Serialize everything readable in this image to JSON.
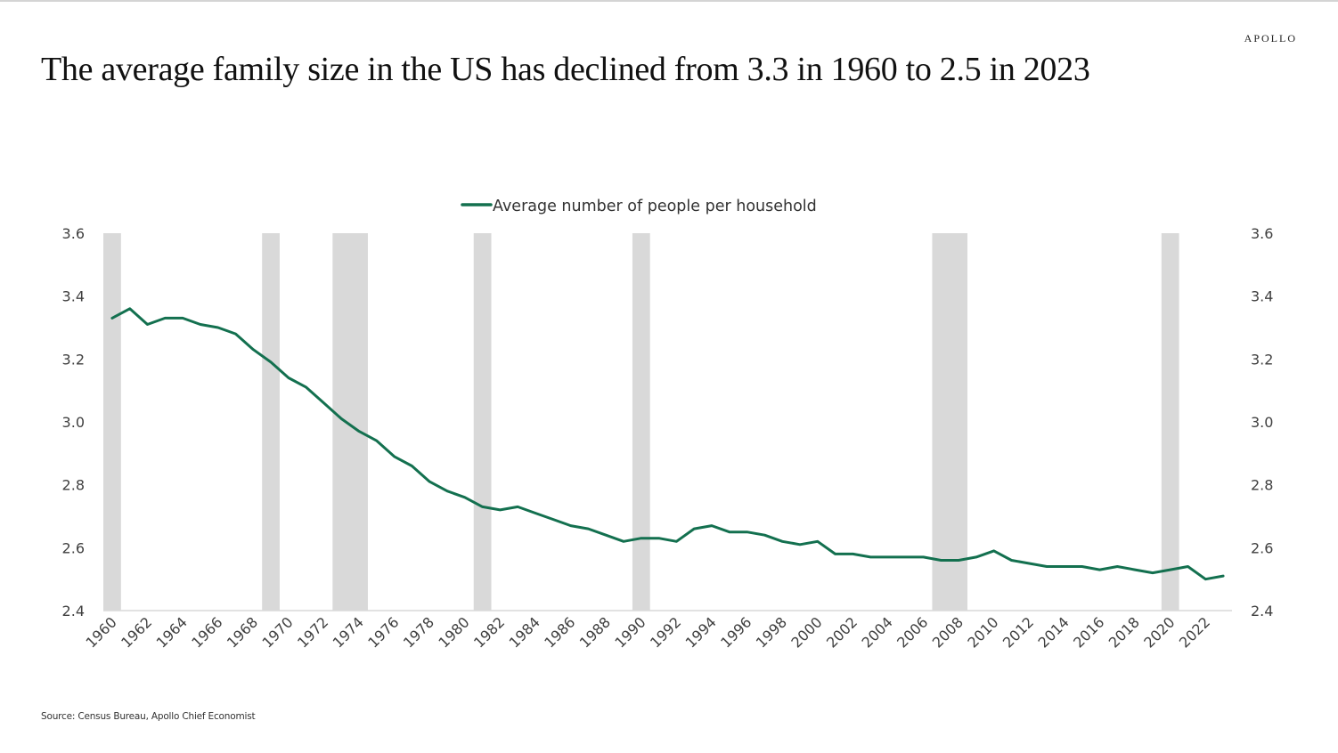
{
  "header": {
    "brand": "APOLLO",
    "title": "The average family size in the US has declined from 3.3 in 1960 to 2.5 in 2023"
  },
  "footer": {
    "source": "Source: Census Bureau, Apollo Chief Economist"
  },
  "colors": {
    "line": "#13704F",
    "recession": "#D9D9D9",
    "axis": "#D9D9D9"
  },
  "chart_data": {
    "type": "line",
    "title": "The average family size in the US has declined from 3.3 in 1960 to 2.5 in 2023",
    "xlabel": "",
    "ylabel": "",
    "ylim": [
      2.4,
      3.6
    ],
    "y_ticks": [
      "2.4",
      "2.6",
      "2.8",
      "3.0",
      "3.2",
      "3.4",
      "3.6"
    ],
    "y_tick_values": [
      2.4,
      2.6,
      2.8,
      3.0,
      3.2,
      3.4,
      3.6
    ],
    "y2_ticks": [
      "2.4",
      "2.6",
      "2.8",
      "3.0",
      "3.2",
      "3.4",
      "3.6"
    ],
    "x_ticks": [
      "1960",
      "1962",
      "1964",
      "1966",
      "1968",
      "1970",
      "1972",
      "1974",
      "1976",
      "1978",
      "1980",
      "1982",
      "1984",
      "1986",
      "1988",
      "1990",
      "1992",
      "1994",
      "1996",
      "1998",
      "2000",
      "2002",
      "2004",
      "2006",
      "2008",
      "2010",
      "2012",
      "2014",
      "2016",
      "2018",
      "2020",
      "2022"
    ],
    "grid": false,
    "legend": {
      "position": "top-center",
      "entries": [
        "Average number of people per household"
      ]
    },
    "recessions": [
      {
        "start": 1960.0,
        "end": 1961.0
      },
      {
        "start": 1969.0,
        "end": 1970.0
      },
      {
        "start": 1973.0,
        "end": 1975.0
      },
      {
        "start": 1981.0,
        "end": 1982.0
      },
      {
        "start": 1990.0,
        "end": 1991.0
      },
      {
        "start": 2007.0,
        "end": 2009.0
      },
      {
        "start": 2020.0,
        "end": 2021.0
      }
    ],
    "x": [
      1960,
      1961,
      1962,
      1963,
      1964,
      1965,
      1966,
      1967,
      1968,
      1969,
      1970,
      1971,
      1972,
      1973,
      1974,
      1975,
      1976,
      1977,
      1978,
      1979,
      1980,
      1981,
      1982,
      1983,
      1984,
      1985,
      1986,
      1987,
      1988,
      1989,
      1990,
      1991,
      1992,
      1993,
      1994,
      1995,
      1996,
      1997,
      1998,
      1999,
      2000,
      2001,
      2002,
      2003,
      2004,
      2005,
      2006,
      2007,
      2008,
      2009,
      2010,
      2011,
      2012,
      2013,
      2014,
      2015,
      2016,
      2017,
      2018,
      2019,
      2020,
      2021,
      2022,
      2023
    ],
    "series": [
      {
        "name": "Average number of people per household",
        "values": [
          3.33,
          3.36,
          3.31,
          3.33,
          3.33,
          3.31,
          3.3,
          3.28,
          3.23,
          3.19,
          3.14,
          3.11,
          3.06,
          3.01,
          2.97,
          2.94,
          2.89,
          2.86,
          2.81,
          2.78,
          2.76,
          2.73,
          2.72,
          2.73,
          2.71,
          2.69,
          2.67,
          2.66,
          2.64,
          2.62,
          2.63,
          2.63,
          2.62,
          2.66,
          2.67,
          2.65,
          2.65,
          2.64,
          2.62,
          2.61,
          2.62,
          2.58,
          2.58,
          2.57,
          2.57,
          2.57,
          2.57,
          2.56,
          2.56,
          2.57,
          2.59,
          2.56,
          2.55,
          2.54,
          2.54,
          2.54,
          2.53,
          2.54,
          2.53,
          2.52,
          2.53,
          2.54,
          2.5,
          2.51
        ]
      }
    ]
  }
}
